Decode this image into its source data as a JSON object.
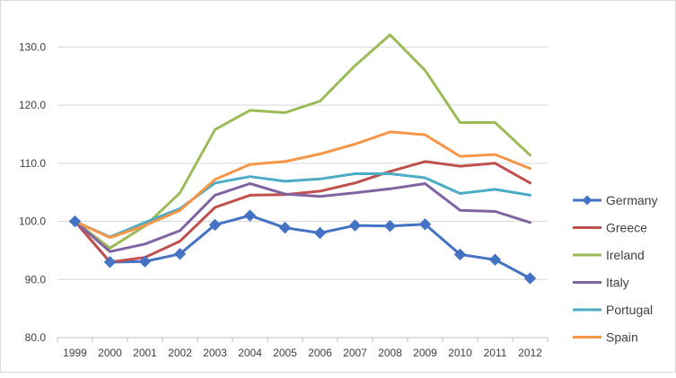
{
  "chart_data": {
    "type": "line",
    "title": "",
    "xlabel": "",
    "ylabel": "",
    "x": [
      "1999",
      "2000",
      "2001",
      "2002",
      "2003",
      "2004",
      "2005",
      "2006",
      "2007",
      "2008",
      "2009",
      "2010",
      "2011",
      "2012"
    ],
    "ylim": [
      80,
      135
    ],
    "yticks": [
      "80.0",
      "90.0",
      "100.0",
      "110.0",
      "120.0",
      "130.0"
    ],
    "grid": "horizontal",
    "legend_position": "right",
    "series": [
      {
        "name": "Germany",
        "color": "#4472c4",
        "marker": "diamond",
        "values": [
          100.0,
          93.0,
          93.1,
          94.4,
          99.4,
          101.0,
          98.9,
          98.0,
          99.3,
          99.2,
          99.5,
          94.3,
          93.4,
          90.2
        ]
      },
      {
        "name": "Greece",
        "color": "#c0504d",
        "marker": "none",
        "values": [
          100.0,
          93.0,
          93.8,
          96.6,
          102.4,
          104.5,
          104.6,
          105.2,
          106.6,
          108.6,
          110.3,
          109.5,
          110.0,
          106.6
        ]
      },
      {
        "name": "Ireland",
        "color": "#9bbb59",
        "marker": "none",
        "values": [
          100.0,
          95.4,
          99.2,
          104.9,
          115.8,
          119.1,
          118.7,
          120.7,
          126.8,
          132.1,
          126.0,
          117.0,
          117.0,
          111.4
        ]
      },
      {
        "name": "Italy",
        "color": "#8064a2",
        "marker": "none",
        "values": [
          100.0,
          94.8,
          96.1,
          98.4,
          104.5,
          106.5,
          104.7,
          104.3,
          104.9,
          105.6,
          106.5,
          101.9,
          101.7,
          99.8
        ]
      },
      {
        "name": "Portugal",
        "color": "#4bacc6",
        "marker": "none",
        "values": [
          100.0,
          97.3,
          99.8,
          102.2,
          106.6,
          107.7,
          106.9,
          107.3,
          108.2,
          108.2,
          107.5,
          104.8,
          105.5,
          104.5
        ]
      },
      {
        "name": "Spain",
        "color": "#f79646",
        "marker": "none",
        "values": [
          100.0,
          97.2,
          99.3,
          101.9,
          107.2,
          109.8,
          110.3,
          111.6,
          113.3,
          115.4,
          114.9,
          111.2,
          111.5,
          109.1
        ]
      }
    ]
  }
}
